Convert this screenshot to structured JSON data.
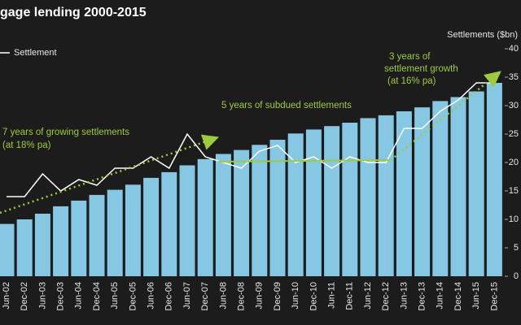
{
  "chart_data": {
    "type": "bar_line",
    "title": "gage lending 2000-2015",
    "y_axis_label": "Settlements ($bn)",
    "categories": [
      "Jun-02",
      "Dec-02",
      "Jun-03",
      "Dec-03",
      "Jun-04",
      "Dec-04",
      "Jun-05",
      "Dec-05",
      "Jun-06",
      "Dec-06",
      "Jun-07",
      "Dec-07",
      "Jun-08",
      "Dec-08",
      "Jun-09",
      "Dec-09",
      "Jun-10",
      "Dec-10",
      "Jun-11",
      "Dec-11",
      "Jun-12",
      "Dec-12",
      "Jun-13",
      "Dec-13",
      "Jun-14",
      "Dec-14",
      "Jun-15",
      "Dec-15"
    ],
    "series": [
      {
        "color": "#86c8e4",
        "values": [
          9.2,
          10,
          11,
          12.3,
          13.3,
          14.3,
          15.2,
          16.1,
          17.3,
          18.3,
          19.5,
          20.6,
          21.5,
          22.2,
          23.1,
          24,
          25.1,
          25.8,
          26.4,
          27,
          27.8,
          28.3,
          29,
          29.7,
          30.8,
          31.5,
          32.5,
          34
        ]
      },
      {
        "name": "Settlement",
        "color": "#ffffff",
        "values": [
          14,
          14,
          18,
          15,
          17,
          16,
          19,
          19,
          21,
          19,
          25,
          21,
          20,
          19,
          22,
          23,
          20,
          21,
          19,
          21,
          20,
          20,
          26,
          26,
          29,
          31,
          34,
          34
        ]
      }
    ],
    "ylim": [
      0,
      40
    ],
    "yticks": [
      0,
      5,
      10,
      15,
      20,
      25,
      30,
      35,
      40
    ],
    "annotations": [
      "7 years of growing settlements",
      "(at 18% pa)",
      "5 years of subdued settlements",
      "3 years of",
      "settlement growth",
      "(at 16% pa)"
    ],
    "annotation_color": "#9ccc3c"
  }
}
